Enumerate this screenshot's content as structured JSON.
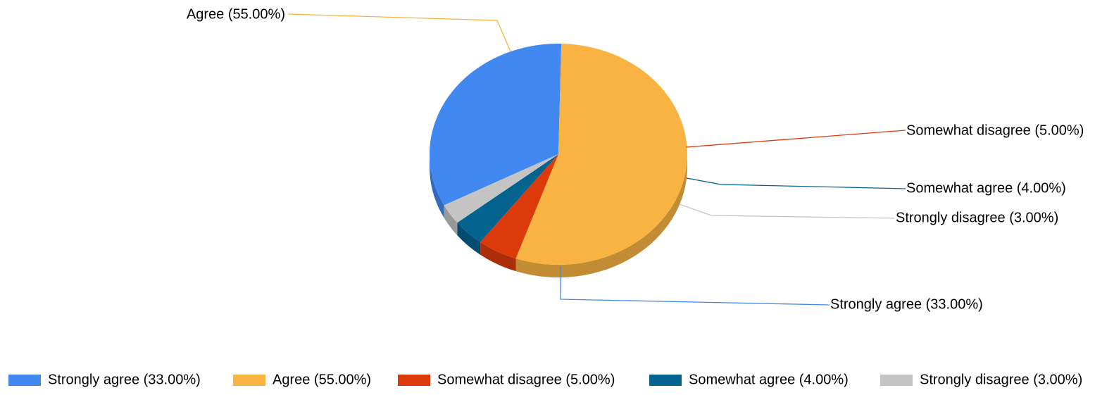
{
  "chart_data": {
    "type": "pie",
    "title": "",
    "three_d": true,
    "legend_position": "bottom",
    "slices": [
      {
        "label": "Strongly agree (33.00%)",
        "name": "Strongly agree",
        "value": 33.0,
        "color": "#4189f0"
      },
      {
        "label": "Agree (55.00%)",
        "name": "Agree",
        "value": 55.0,
        "color": "#f8b342"
      },
      {
        "label": "Somewhat disagree (5.00%)",
        "name": "Somewhat disagree",
        "value": 5.0,
        "color": "#dc3a0b"
      },
      {
        "label": "Somewhat agree (4.00%)",
        "name": "Somewhat agree",
        "value": 4.0,
        "color": "#04628f"
      },
      {
        "label": "Strongly disagree (3.00%)",
        "name": "Strongly disagree",
        "value": 3.0,
        "color": "#c4c4c4"
      }
    ]
  }
}
